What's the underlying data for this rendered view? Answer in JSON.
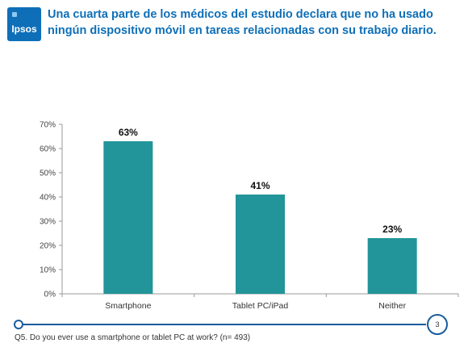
{
  "logo": {
    "text": "Ipsos",
    "color": "#0e6fb8"
  },
  "title": "Una cuarta parte de los médicos del estudio declara que no ha usado ningún dispositivo móvil en tareas relacionadas con su trabajo diario.",
  "chart_data": {
    "type": "bar",
    "categories": [
      "Smartphone",
      "Tablet PC/iPad",
      "Neither"
    ],
    "values": [
      63,
      41,
      23
    ],
    "data_labels": [
      "63%",
      "41%",
      "23%"
    ],
    "yticks": [
      "0%",
      "10%",
      "20%",
      "30%",
      "40%",
      "50%",
      "60%",
      "70%"
    ],
    "ylim": [
      0,
      70
    ],
    "bar_color": "#22959a",
    "grid": false
  },
  "footer": {
    "page_number": "3",
    "note": "Q5. Do you ever use a smartphone or tablet PC at work? (n= 493)"
  }
}
